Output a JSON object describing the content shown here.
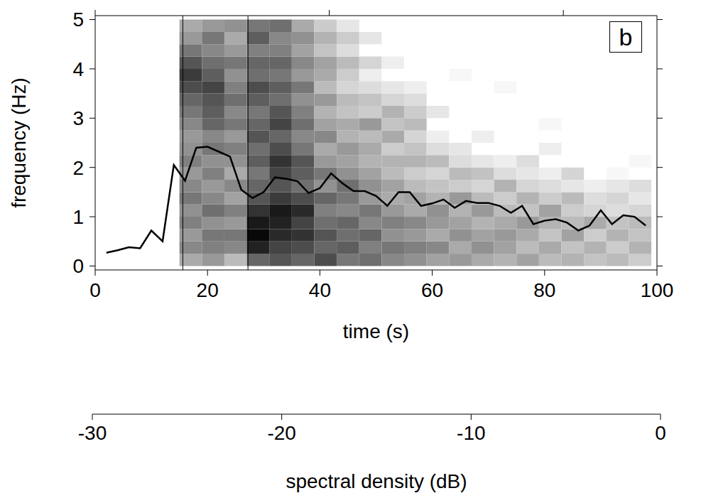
{
  "chart_data": {
    "type": "line",
    "annotations": [
      "b"
    ],
    "x_label": "time (s)",
    "y_label": "frequency (Hz)",
    "xlim": [
      0,
      100
    ],
    "xticks": [
      0,
      20,
      40,
      60,
      80,
      100
    ],
    "ylim": [
      -0.08,
      5.08
    ],
    "yticks": [
      0,
      1,
      2,
      3,
      4,
      5
    ],
    "color": "#000000",
    "x": [
      2,
      4,
      6,
      8,
      10,
      12,
      14,
      16,
      18,
      20,
      22,
      24,
      26,
      28,
      30,
      32,
      34,
      36,
      38,
      40,
      42,
      44,
      46,
      48,
      50,
      52,
      54,
      56,
      58,
      60,
      62,
      64,
      66,
      68,
      70,
      72,
      74,
      76,
      78,
      80,
      82,
      84,
      86,
      88,
      90,
      92,
      94,
      96,
      98
    ],
    "values": [
      0.27,
      0.32,
      0.38,
      0.36,
      0.72,
      0.5,
      2.05,
      1.73,
      2.4,
      2.42,
      2.32,
      2.22,
      1.55,
      1.38,
      1.5,
      1.8,
      1.77,
      1.72,
      1.48,
      1.58,
      1.88,
      1.68,
      1.52,
      1.52,
      1.42,
      1.22,
      1.5,
      1.5,
      1.22,
      1.27,
      1.35,
      1.18,
      1.32,
      1.28,
      1.28,
      1.22,
      1.08,
      1.22,
      0.85,
      0.92,
      0.95,
      0.88,
      0.72,
      0.82,
      1.13,
      0.85,
      1.03,
      1.0,
      0.82
    ],
    "vlines": [
      15.6,
      27.2
    ],
    "cells": {
      "x_edges": [
        15,
        19,
        23,
        27,
        31,
        35,
        39,
        43,
        47,
        51,
        55,
        59,
        63,
        67,
        71,
        75,
        79,
        83,
        87,
        91,
        95,
        99
      ],
      "y_edges": [
        0,
        0.25,
        0.5,
        0.75,
        1,
        1.25,
        1.5,
        1.75,
        2,
        2.25,
        2.5,
        2.75,
        3,
        3.25,
        3.5,
        3.75,
        4,
        4.25,
        4.5,
        4.75,
        5
      ],
      "values": [
        [
          -20,
          -16,
          -18,
          -15,
          -17,
          -14,
          -16,
          -18,
          -15,
          -17,
          -18,
          -16,
          -14,
          -12,
          -9,
          -7,
          -10,
          -14,
          -18,
          -20
        ],
        [
          -18,
          -15,
          -14,
          -17,
          -13,
          -16,
          -18,
          -15,
          -17,
          -14,
          -16,
          -12,
          -11,
          -10,
          -8,
          -11,
          -13,
          -16,
          -14,
          -18
        ],
        [
          -22,
          -16,
          -14,
          -18,
          -15,
          -19,
          -16,
          -20,
          -17,
          -15,
          -18,
          -14,
          -16,
          -13,
          -15,
          -17,
          -14,
          -18,
          -20,
          -17
        ],
        [
          -12,
          -4,
          -1,
          -3,
          -6,
          -10,
          -12,
          -14,
          -11,
          -13,
          -10,
          -12,
          -14,
          -11,
          -9,
          -13,
          -12,
          -15,
          -11,
          -14
        ],
        [
          -10,
          -8,
          -5,
          -4,
          -3,
          -7,
          -10,
          -8,
          -6,
          -9,
          -12,
          -8,
          -10,
          -13,
          -11,
          -14,
          -12,
          -15,
          -16,
          -13
        ],
        [
          -12,
          -9,
          -6,
          -8,
          -5,
          -9,
          -13,
          -11,
          -10,
          -14,
          -16,
          -13,
          -15,
          -17,
          -14,
          -18,
          -16,
          -19,
          -17,
          -20
        ],
        [
          -9,
          -12,
          -10,
          -13,
          -15,
          -12,
          -17,
          -14,
          -18,
          -20,
          -16,
          -19,
          -21,
          -18,
          -22,
          -20,
          -19,
          -23,
          -21,
          -24
        ],
        [
          -14,
          -11,
          -13,
          -12,
          -16,
          -14,
          -13,
          -17,
          -19,
          -18,
          -21,
          -20,
          -23,
          -22,
          -25,
          -24,
          -22,
          -26,
          -24,
          -27
        ],
        [
          -13,
          -15,
          -12,
          -16,
          -14,
          -18,
          -17,
          -19,
          -21,
          -20,
          -22,
          -18,
          -24,
          -23,
          -26,
          -28,
          -25,
          null,
          -27,
          null
        ],
        [
          -16,
          -14,
          -17,
          -15,
          -18,
          -20,
          -19,
          -22,
          -21,
          -24,
          -20,
          -23,
          -21,
          -25,
          -27,
          null,
          -28,
          null,
          null,
          null
        ],
        [
          -17,
          -15,
          -18,
          -16,
          -20,
          -19,
          -22,
          -24,
          -21,
          -23,
          -25,
          -22,
          -24,
          -26,
          -28,
          null,
          null,
          null,
          null,
          null
        ],
        [
          -19,
          -16,
          -20,
          -18,
          -17,
          -21,
          -23,
          -25,
          -22,
          -26,
          -28,
          null,
          -27,
          null,
          null,
          null,
          null,
          null,
          null,
          null
        ],
        [
          -18,
          -20,
          -17,
          -19,
          -21,
          -18,
          -24,
          -22,
          -26,
          -27,
          null,
          null,
          null,
          null,
          null,
          -29,
          null,
          null,
          null,
          null
        ],
        [
          -20,
          -17,
          -19,
          -21,
          -18,
          -22,
          -25,
          -23,
          -27,
          null,
          -28,
          null,
          null,
          null,
          null,
          null,
          null,
          null,
          null,
          null
        ],
        [
          -21,
          -19,
          -18,
          -20,
          -22,
          -24,
          -21,
          -26,
          -28,
          null,
          null,
          null,
          null,
          null,
          -29,
          null,
          null,
          null,
          null,
          null
        ],
        [
          -19,
          -22,
          -20,
          -18,
          -23,
          -21,
          -25,
          -27,
          -26,
          null,
          null,
          null,
          null,
          null,
          null,
          null,
          null,
          null,
          null,
          null
        ],
        [
          -22,
          -20,
          -23,
          -21,
          -19,
          -24,
          -26,
          -28,
          null,
          -28,
          null,
          -29,
          null,
          null,
          null,
          null,
          null,
          null,
          null,
          null
        ],
        [
          -21,
          -23,
          -19,
          -22,
          -24,
          -22,
          -27,
          -25,
          null,
          null,
          null,
          null,
          null,
          null,
          null,
          null,
          null,
          null,
          null,
          null
        ],
        [
          -23,
          -21,
          -24,
          -20,
          -25,
          -26,
          -28,
          null,
          null,
          null,
          null,
          null,
          null,
          null,
          null,
          null,
          null,
          null,
          null,
          null
        ],
        [
          -22,
          -24,
          -21,
          -23,
          -26,
          -25,
          -27,
          -29,
          null,
          null,
          null,
          null,
          null,
          null,
          null,
          null,
          null,
          null,
          null,
          null
        ],
        [
          -24,
          -21,
          -23,
          -22,
          -25,
          -27,
          -26,
          null,
          -29,
          null,
          null,
          null,
          null,
          null,
          null,
          null,
          null,
          null,
          null,
          null
        ]
      ]
    },
    "colorbar": {
      "label": "spectral density (dB)",
      "range": [
        -30,
        0
      ],
      "ticks": [
        -30,
        -20,
        -10,
        0
      ]
    }
  }
}
